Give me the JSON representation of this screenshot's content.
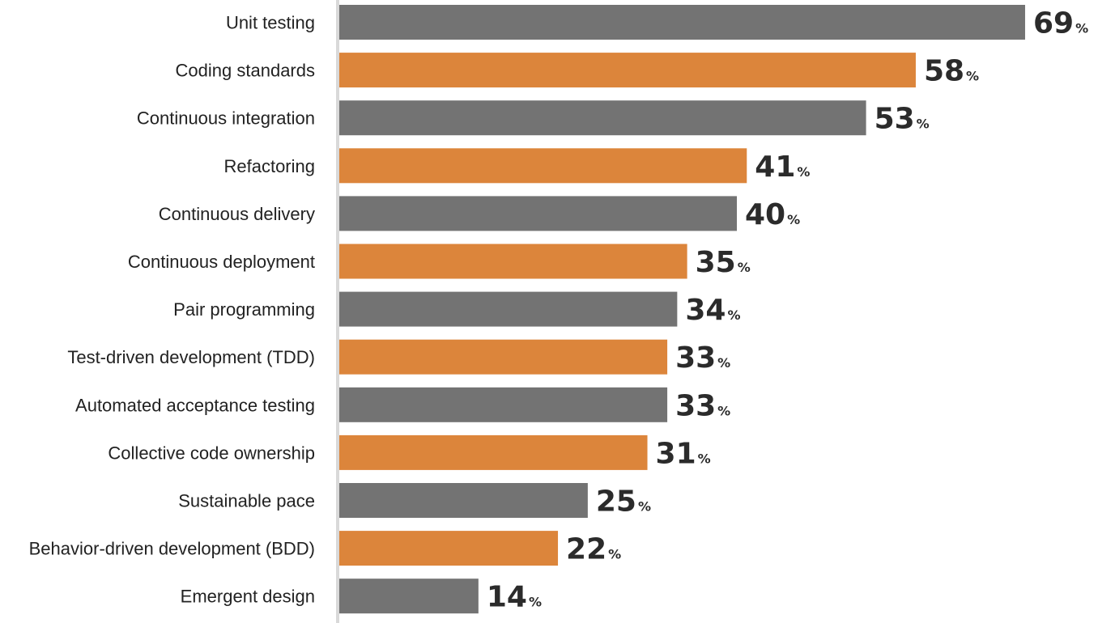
{
  "chart_data": {
    "type": "bar",
    "orientation": "horizontal",
    "categories": [
      "Unit testing",
      "Coding standards",
      "Continuous integration",
      "Refactoring",
      "Continuous delivery",
      "Continuous deployment",
      "Pair programming",
      "Test-driven development (TDD)",
      "Automated acceptance testing",
      "Collective code ownership",
      "Sustainable pace",
      "Behavior-driven development (BDD)",
      "Emergent design"
    ],
    "values": [
      69,
      58,
      53,
      41,
      40,
      35,
      34,
      33,
      33,
      31,
      25,
      22,
      14
    ],
    "value_suffix": "%",
    "xlim": [
      0,
      100
    ],
    "grid": false,
    "legend": false,
    "colors": {
      "even": "#737373",
      "odd": "#dc853b",
      "axis": "#d9d9d9"
    }
  }
}
